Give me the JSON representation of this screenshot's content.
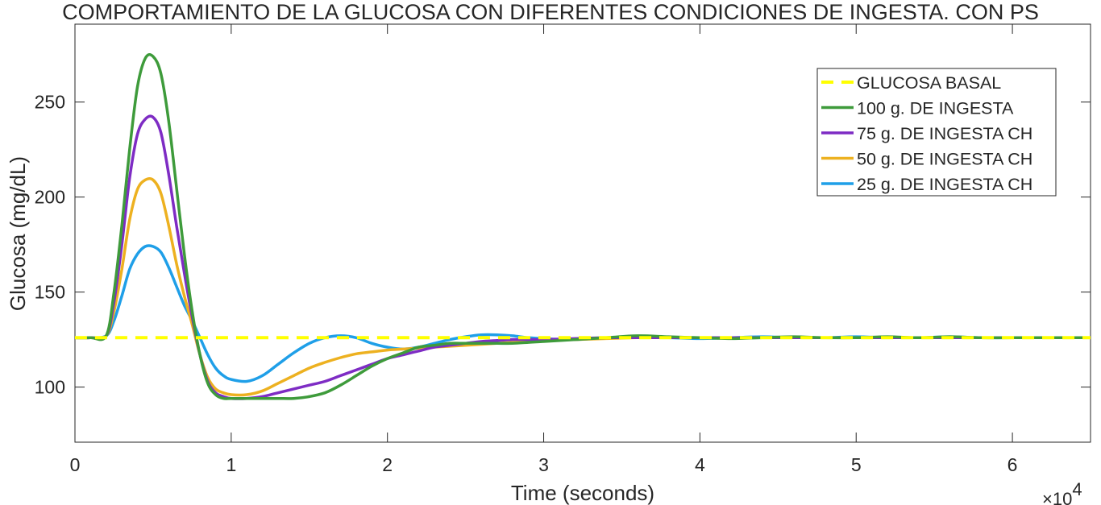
{
  "chart_data": {
    "type": "line",
    "title": "COMPORTAMIENTO DE LA GLUCOSA CON DIFERENTES CONDICIONES DE INGESTA. CON PS",
    "xlabel": "Time (seconds)",
    "ylabel": "Glucosa (mg/dL)",
    "x_multiplier_label": "×10",
    "x_multiplier_exp": "4",
    "xlim": [
      0,
      65000
    ],
    "ylim": [
      71,
      291
    ],
    "xticks": [
      0,
      10000,
      20000,
      30000,
      40000,
      50000,
      60000
    ],
    "xtick_labels": [
      "0",
      "1",
      "2",
      "3",
      "4",
      "5",
      "6"
    ],
    "yticks": [
      100,
      150,
      200,
      250
    ],
    "grid": false,
    "legend_position": "top-right",
    "series": [
      {
        "name": "GLUCOSA BASAL",
        "color": "#ffff00",
        "dashed": true,
        "x": [
          0,
          65000
        ],
        "y": [
          126,
          126
        ]
      },
      {
        "name": "100 g. DE INGESTA",
        "color": "#3e9b3b",
        "dashed": false,
        "x": [
          0,
          1000,
          2000,
          2500,
          3000,
          3500,
          4000,
          4500,
          5000,
          5500,
          6000,
          6500,
          7000,
          7500,
          8000,
          8500,
          9000,
          9500,
          10000,
          11000,
          12000,
          13000,
          14000,
          15000,
          16000,
          17000,
          18000,
          19000,
          20000,
          21000,
          22000,
          23000,
          24000,
          25000,
          26000,
          27000,
          28000,
          29000,
          30000,
          32000,
          34000,
          36000,
          38000,
          40000,
          42000,
          44000,
          46000,
          48000,
          50000,
          52000,
          54000,
          56000,
          58000,
          60000,
          62000,
          65000
        ],
        "y": [
          126,
          126,
          127,
          150,
          185,
          225,
          258,
          273,
          274,
          265,
          240,
          205,
          170,
          140,
          117,
          102,
          96,
          94,
          94,
          94,
          94,
          94,
          94,
          95,
          97,
          101,
          106,
          111,
          115,
          118,
          121,
          122,
          123,
          123,
          123,
          123,
          123,
          123.5,
          124,
          125,
          126,
          127,
          126.5,
          126,
          125.5,
          126,
          126.5,
          126,
          126,
          126.5,
          126,
          126.5,
          126,
          126,
          126,
          126
        ]
      },
      {
        "name": "75 g. DE INGESTA CH",
        "color": "#7e2cc4",
        "dashed": false,
        "x": [
          0,
          1000,
          2000,
          2500,
          3000,
          3500,
          4000,
          4500,
          5000,
          5500,
          6000,
          6500,
          7000,
          7500,
          8000,
          8500,
          9000,
          9500,
          10000,
          11000,
          12000,
          13000,
          14000,
          15000,
          16000,
          17000,
          18000,
          19000,
          20000,
          21000,
          22000,
          23000,
          24000,
          25000,
          26000,
          27000,
          28000,
          29000,
          30000,
          32000,
          34000,
          36000,
          38000,
          40000,
          42000,
          44000,
          46000,
          48000,
          50000,
          52000,
          54000,
          56000,
          58000,
          60000,
          62000,
          65000
        ],
        "y": [
          126,
          126,
          127,
          145,
          175,
          210,
          233,
          241,
          242,
          234,
          212,
          185,
          160,
          137,
          117,
          103,
          97,
          95,
          94,
          94,
          95,
          97,
          99,
          101,
          103,
          106,
          109,
          112,
          115,
          117,
          119,
          121,
          122,
          123,
          124,
          124.5,
          125,
          125,
          125,
          125.5,
          126,
          126,
          126,
          126,
          126,
          126,
          126,
          126,
          126,
          126,
          126,
          126,
          126,
          126,
          126,
          126
        ]
      },
      {
        "name": "50 g. DE INGESTA CH",
        "color": "#edb120",
        "dashed": false,
        "x": [
          0,
          1000,
          2000,
          2500,
          3000,
          3500,
          4000,
          4500,
          5000,
          5500,
          6000,
          6500,
          7000,
          7500,
          8000,
          8500,
          9000,
          9500,
          10000,
          11000,
          12000,
          13000,
          14000,
          15000,
          16000,
          17000,
          18000,
          19000,
          20000,
          21000,
          22000,
          23000,
          24000,
          25000,
          26000,
          27000,
          28000,
          29000,
          30000,
          32000,
          34000,
          36000,
          38000,
          40000,
          42000,
          44000,
          46000,
          48000,
          50000,
          52000,
          54000,
          56000,
          58000,
          60000,
          62000,
          65000
        ],
        "y": [
          126,
          126,
          127,
          140,
          162,
          188,
          204,
          209,
          209,
          202,
          185,
          165,
          148,
          133,
          117,
          105,
          99,
          97,
          96,
          96,
          98,
          102,
          106,
          110,
          113,
          115.5,
          117.5,
          118.5,
          119.5,
          120,
          120.5,
          121,
          121.5,
          122,
          122.5,
          123,
          123.5,
          124,
          124.5,
          125,
          125.5,
          126,
          126,
          126,
          126,
          126,
          126,
          126,
          126,
          126,
          126,
          126,
          126,
          126,
          126,
          126
        ]
      },
      {
        "name": "25 g. DE INGESTA CH",
        "color": "#1f9fe8",
        "dashed": false,
        "x": [
          0,
          1000,
          2000,
          2500,
          3000,
          3500,
          4000,
          4500,
          5000,
          5500,
          6000,
          6500,
          7000,
          7500,
          8000,
          8500,
          9000,
          9500,
          10000,
          11000,
          12000,
          13000,
          14000,
          15000,
          16000,
          17000,
          18000,
          19000,
          20000,
          21000,
          22000,
          23000,
          24000,
          25000,
          26000,
          27000,
          28000,
          29000,
          30000,
          32000,
          34000,
          36000,
          38000,
          40000,
          42000,
          44000,
          46000,
          48000,
          50000,
          52000,
          54000,
          56000,
          58000,
          60000,
          62000,
          65000
        ],
        "y": [
          126,
          126,
          127,
          135,
          148,
          162,
          170,
          174,
          174,
          171,
          163,
          153,
          143,
          135,
          126,
          117,
          110,
          106,
          104,
          103,
          106,
          112,
          118,
          123,
          126,
          127,
          126,
          123,
          121,
          120,
          121,
          123,
          125,
          126.5,
          127.5,
          127.5,
          127,
          126,
          125.5,
          125,
          126,
          126.5,
          126,
          125.5,
          126,
          126.5,
          126,
          126,
          126.5,
          126,
          126,
          126.5,
          126,
          126,
          126,
          126
        ]
      }
    ]
  }
}
